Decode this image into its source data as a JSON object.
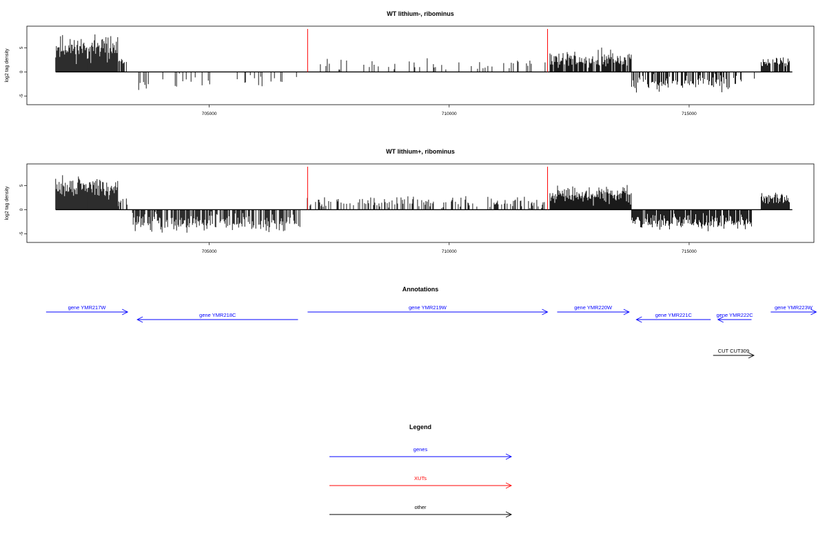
{
  "chart_data": [
    {
      "type": "bar",
      "title": "WT lithium-, ribominus",
      "ylabel": "log2 tag density",
      "xlabel": "",
      "xlim": [
        701200,
        717600
      ],
      "ylim": [
        -6.8,
        9.5
      ],
      "xticks": [
        705000,
        710000,
        715000
      ],
      "xtick_labels": [
        "705000",
        "710000",
        "715000"
      ],
      "yticks": [
        -5,
        0,
        5
      ],
      "ytick_labels": [
        "-5",
        "0",
        "5"
      ],
      "grid": false,
      "markers": [
        {
          "x": 707050,
          "color": "#ff0000"
        },
        {
          "x": 712050,
          "color": "#ff0000"
        }
      ],
      "regions": [
        {
          "from": 701800,
          "to": 703100,
          "mean": 5.0,
          "spread": 2.5,
          "density": 1.0
        },
        {
          "from": 703100,
          "to": 703300,
          "mean": 2.0,
          "spread": 1.0,
          "density": 0.6
        },
        {
          "from": 703400,
          "to": 706900,
          "mean": -2.2,
          "spread": 1.6,
          "density": 0.18
        },
        {
          "from": 707000,
          "to": 712000,
          "mean": 1.6,
          "spread": 1.3,
          "density": 0.13
        },
        {
          "from": 712100,
          "to": 713800,
          "mean": 2.6,
          "spread": 1.8,
          "density": 0.8
        },
        {
          "from": 713800,
          "to": 716000,
          "mean": -2.3,
          "spread": 1.6,
          "density": 0.6
        },
        {
          "from": 716000,
          "to": 716400,
          "mean": -1.5,
          "spread": 1.0,
          "density": 0.1
        },
        {
          "from": 716500,
          "to": 717100,
          "mean": 2.0,
          "spread": 0.9,
          "density": 0.9
        }
      ]
    },
    {
      "type": "bar",
      "title": "WT lithium+, ribominus",
      "ylabel": "log2 tag density",
      "xlabel": "",
      "xlim": [
        701200,
        717600
      ],
      "ylim": [
        -6.8,
        9.5
      ],
      "xticks": [
        705000,
        710000,
        715000
      ],
      "xtick_labels": [
        "705000",
        "710000",
        "715000"
      ],
      "yticks": [
        -5,
        0,
        5
      ],
      "ytick_labels": [
        "-5",
        "0",
        "5"
      ],
      "grid": false,
      "markers": [
        {
          "x": 707050,
          "color": "#ff0000"
        },
        {
          "x": 712050,
          "color": "#ff0000"
        }
      ],
      "regions": [
        {
          "from": 701800,
          "to": 703100,
          "mean": 4.6,
          "spread": 2.2,
          "density": 1.0
        },
        {
          "from": 703100,
          "to": 703300,
          "mean": 2.0,
          "spread": 1.0,
          "density": 0.6
        },
        {
          "from": 703400,
          "to": 706900,
          "mean": -2.6,
          "spread": 1.8,
          "density": 0.7
        },
        {
          "from": 707000,
          "to": 712000,
          "mean": 1.5,
          "spread": 1.2,
          "density": 0.35
        },
        {
          "from": 712100,
          "to": 713800,
          "mean": 3.0,
          "spread": 1.8,
          "density": 1.0
        },
        {
          "from": 713800,
          "to": 716300,
          "mean": -2.6,
          "spread": 1.6,
          "density": 0.9
        },
        {
          "from": 716500,
          "to": 717100,
          "mean": 2.5,
          "spread": 1.0,
          "density": 1.0
        }
      ]
    }
  ],
  "annotations": {
    "title": "Annotations",
    "features": [
      {
        "label": "gene YMR217W",
        "from": 701600,
        "to": 703300,
        "strand": "+",
        "row": 0,
        "color": "#0000ff"
      },
      {
        "label": "gene YMR218C",
        "from": 703500,
        "to": 706850,
        "strand": "-",
        "row": 1,
        "color": "#0000ff"
      },
      {
        "label": "gene YMR219W",
        "from": 707050,
        "to": 712050,
        "strand": "+",
        "row": 0,
        "color": "#0000ff"
      },
      {
        "label": "gene YMR220W",
        "from": 712250,
        "to": 713750,
        "strand": "+",
        "row": 0,
        "color": "#0000ff"
      },
      {
        "label": "gene YMR221C",
        "from": 713900,
        "to": 715450,
        "strand": "-",
        "row": 1,
        "color": "#0000ff"
      },
      {
        "label": "gene YMR222C",
        "from": 715600,
        "to": 716300,
        "strand": "-",
        "row": 1,
        "color": "#0000ff"
      },
      {
        "label": "gene YMR223W",
        "from": 716700,
        "to": 717650,
        "strand": "+",
        "row": 0,
        "color": "#0000ff"
      },
      {
        "label": "CUT CUT309",
        "from": 715500,
        "to": 716350,
        "strand": "+",
        "row": 2,
        "color": "#000000"
      }
    ]
  },
  "legend": {
    "title": "Legend",
    "items": [
      {
        "label": "genes",
        "color": "#0000ff"
      },
      {
        "label": "XUTs",
        "color": "#ff0000"
      },
      {
        "label": "other",
        "color": "#000000"
      }
    ]
  }
}
